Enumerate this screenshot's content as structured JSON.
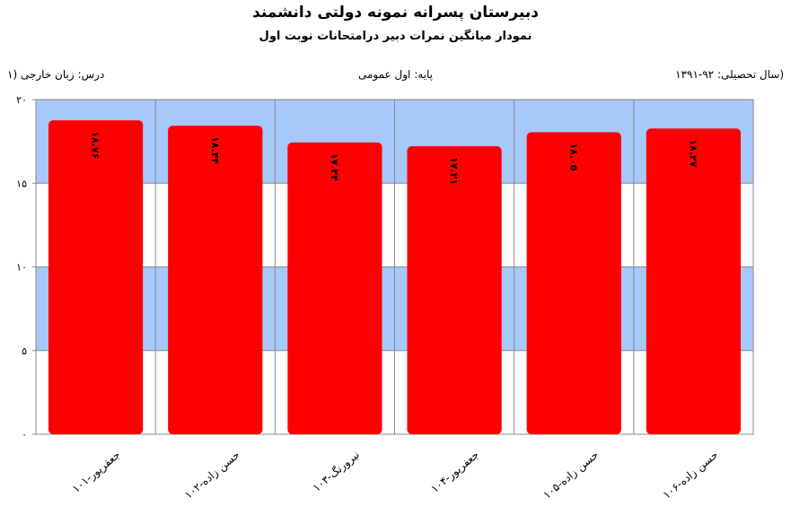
{
  "header": {
    "title": "دبیرستان پسرانه نمونه دولتی دانشمند",
    "subtitle": "نمودار میانگین نمرات دبیر درامتحانات نوبت اول",
    "academic_year": "(سال تحصیلی: ۹۲-۱۳۹۱",
    "grade": "پایه: اول عمومی",
    "course": "درس: زبان خارجی (۱"
  },
  "colors": {
    "bar": "#ff0000",
    "band_blue": "#a6c8fa",
    "band_white": "#ffffff",
    "grid": "#8a8a8a"
  },
  "chart_data": {
    "type": "bar",
    "title": "نمودار میانگین نمرات دبیر درامتحانات نوبت اول",
    "categories": [
      "جعفرپور-۱۰۱",
      "حسن زاده-۱۰۲",
      "نیرورنگ-۱۰۳",
      "جعفرپور-۱۰۴",
      "حسن زاده-۱۰۵",
      "حسن زاده-۱۰۶"
    ],
    "values": [
      18.76,
      18.44,
      17.44,
      17.21,
      18.05,
      18.27
    ],
    "data_labels": [
      "۱۸.۷۶",
      "۱۸.۴۴",
      "۱۷.۴۴",
      "۱۷.۲۱",
      "۱۸.۰۵",
      "۱۸.۲۷"
    ],
    "ylim": [
      0,
      20
    ],
    "yticks": [
      0,
      5,
      10,
      15,
      20
    ],
    "ytick_labels": [
      "۰",
      "۵",
      "۱۰",
      "۱۵",
      "۲۰"
    ],
    "grid": true,
    "legend": "none"
  }
}
